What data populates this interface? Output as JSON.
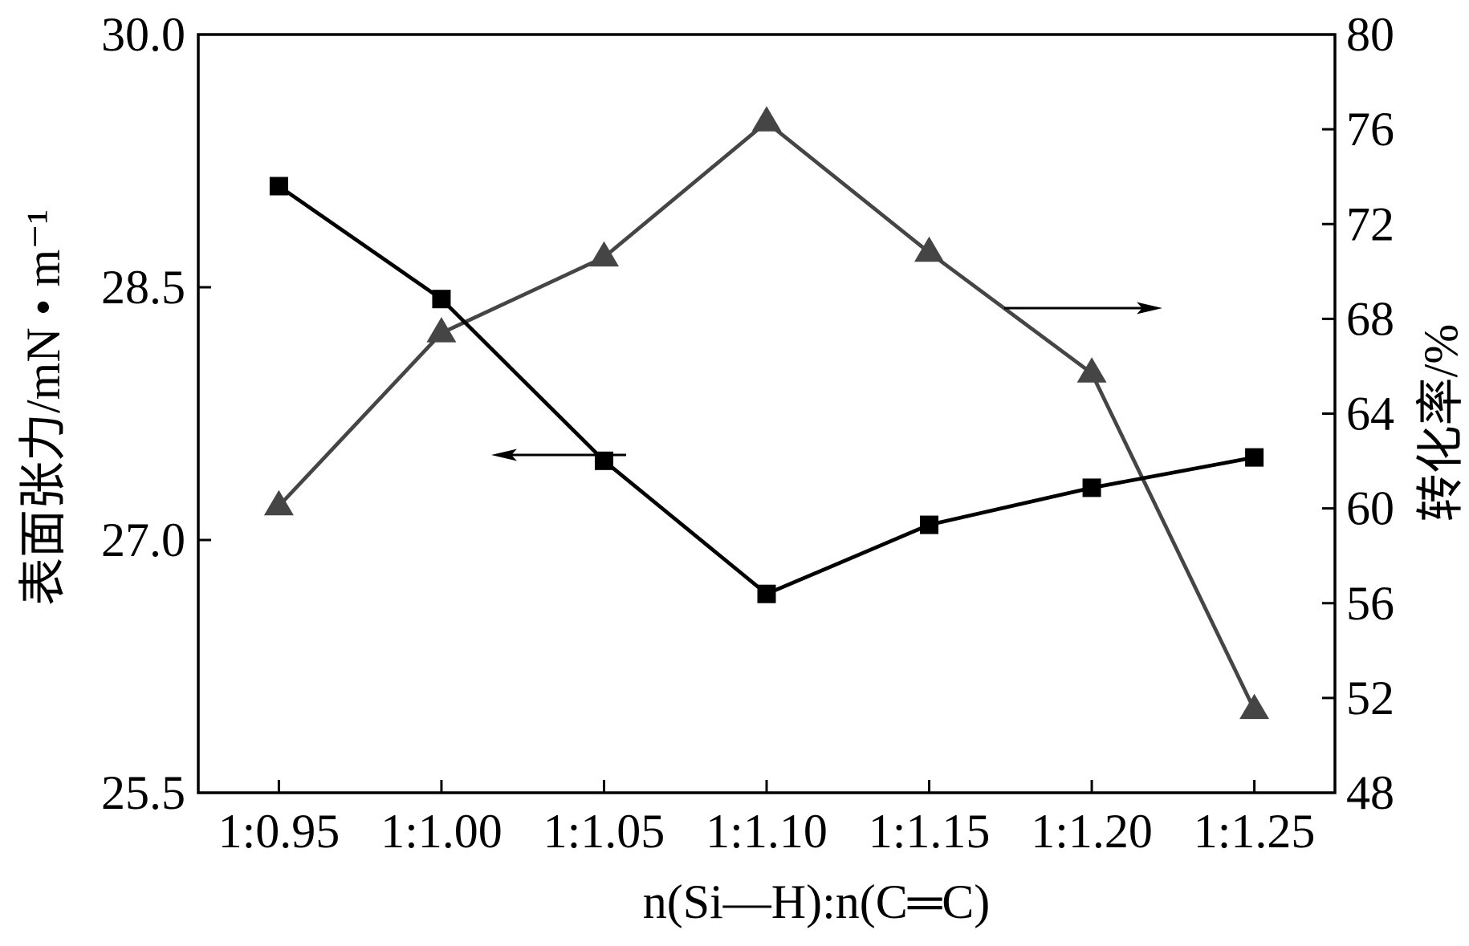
{
  "chart_data": {
    "type": "line",
    "categories": [
      "1:0.95",
      "1:1.00",
      "1:1.05",
      "1:1.10",
      "1:1.15",
      "1:1.20",
      "1:1.25"
    ],
    "xlabel": "n(Si—H):n(C═C)",
    "y_left": {
      "label": "表面张力/mN • m⁻¹",
      "range": [
        25.5,
        30.0
      ],
      "ticks": [
        "25.5",
        "27.0",
        "28.5",
        "30.0"
      ]
    },
    "y_right": {
      "label": "转化率/%",
      "range": [
        48,
        80
      ],
      "ticks": [
        "48",
        "52",
        "56",
        "60",
        "64",
        "68",
        "72",
        "76",
        "80"
      ]
    },
    "series": [
      {
        "axis": "left",
        "marker": "square",
        "color": "#000000",
        "values": [
          29.1,
          28.43,
          27.47,
          26.68,
          27.09,
          27.31,
          27.49
        ]
      },
      {
        "axis": "right",
        "marker": "triangle",
        "color": "#454545",
        "values": [
          60.1,
          67.4,
          70.6,
          76.3,
          70.8,
          65.7,
          51.5
        ]
      }
    ],
    "grid": false
  }
}
